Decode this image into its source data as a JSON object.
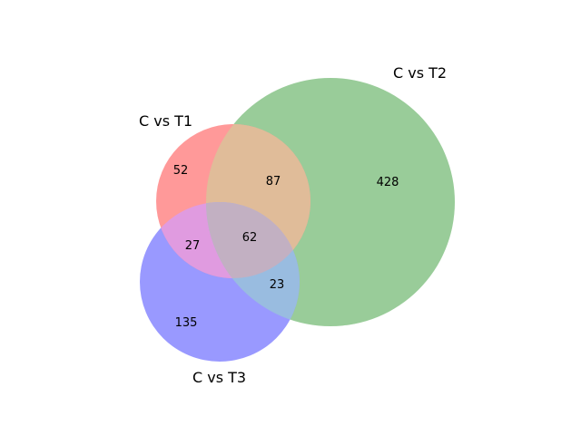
{
  "venn": {
    "sets": [
      {
        "label": "C vs T1",
        "color": "#ff9999"
      },
      {
        "label": "C vs T2",
        "color": "#99cc99"
      },
      {
        "label": "C vs T3",
        "color": "#9999ff"
      }
    ],
    "regions": {
      "t1_only": "52",
      "t2_only": "428",
      "t3_only": "135",
      "t1_t2": "87",
      "t1_t3": "27",
      "t2_t3": "23",
      "t1_t2_t3": "62"
    },
    "overlap_colors": {
      "t1_t2": "#e0bc99",
      "t1_t3": "#e09be0",
      "t2_t3": "#99bce0",
      "t1_t2_t3": "#c2b0c2"
    }
  }
}
